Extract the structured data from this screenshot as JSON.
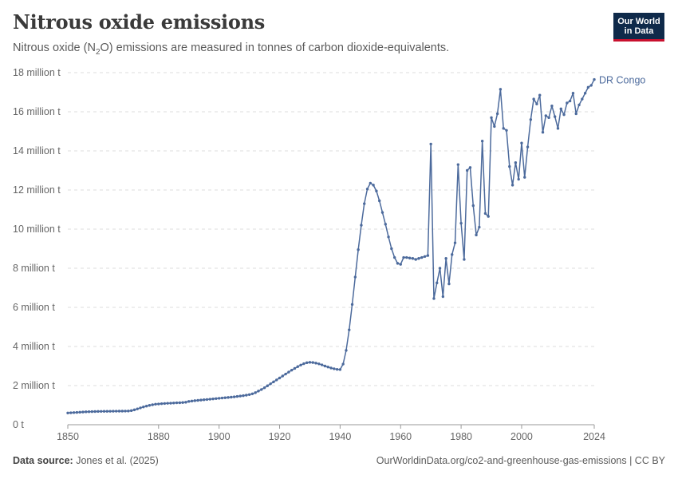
{
  "header": {
    "title": "Nitrous oxide emissions",
    "subtitle_before": "Nitrous oxide (N",
    "subtitle_sub": "2",
    "subtitle_after": "O) emissions are measured in tonnes of carbon dioxide-equivalents."
  },
  "logo": {
    "line1": "Our World",
    "line2": "in Data",
    "bg_color": "#0f2a4a",
    "accent_color": "#c8102e"
  },
  "footer": {
    "source_label": "Data source:",
    "source_text": "Jones et al. (2025)",
    "url_text": "OurWorldinData.org/co2-and-greenhouse-gas-emissions | CC BY"
  },
  "chart_data": {
    "type": "line",
    "title": "Nitrous oxide emissions",
    "xlabel": "",
    "ylabel": "",
    "xlim": [
      1850,
      2024
    ],
    "ylim": [
      0,
      18000000
    ],
    "x_ticks": [
      1850,
      1880,
      1900,
      1920,
      1940,
      1960,
      1980,
      2000,
      2024
    ],
    "y_ticks": [
      {
        "value": 0,
        "label": "0 t"
      },
      {
        "value": 2000000,
        "label": "2 million t"
      },
      {
        "value": 4000000,
        "label": "4 million t"
      },
      {
        "value": 6000000,
        "label": "6 million t"
      },
      {
        "value": 8000000,
        "label": "8 million t"
      },
      {
        "value": 10000000,
        "label": "10 million t"
      },
      {
        "value": 12000000,
        "label": "12 million t"
      },
      {
        "value": 14000000,
        "label": "14 million t"
      },
      {
        "value": 16000000,
        "label": "16 million t"
      },
      {
        "value": 18000000,
        "label": "18 million t"
      }
    ],
    "grid": "horizontal dashed",
    "series": [
      {
        "name": "DR Congo",
        "color": "#4c6a9c",
        "points": [
          [
            1850,
            600000
          ],
          [
            1851,
            610000
          ],
          [
            1852,
            620000
          ],
          [
            1853,
            630000
          ],
          [
            1854,
            640000
          ],
          [
            1855,
            650000
          ],
          [
            1856,
            660000
          ],
          [
            1857,
            665000
          ],
          [
            1858,
            670000
          ],
          [
            1859,
            675000
          ],
          [
            1860,
            680000
          ],
          [
            1861,
            682000
          ],
          [
            1862,
            684000
          ],
          [
            1863,
            686000
          ],
          [
            1864,
            688000
          ],
          [
            1865,
            690000
          ],
          [
            1866,
            692000
          ],
          [
            1867,
            694000
          ],
          [
            1868,
            696000
          ],
          [
            1869,
            698000
          ],
          [
            1870,
            700000
          ],
          [
            1871,
            720000
          ],
          [
            1872,
            760000
          ],
          [
            1873,
            810000
          ],
          [
            1874,
            860000
          ],
          [
            1875,
            910000
          ],
          [
            1876,
            950000
          ],
          [
            1877,
            990000
          ],
          [
            1878,
            1020000
          ],
          [
            1879,
            1050000
          ],
          [
            1880,
            1060000
          ],
          [
            1881,
            1075000
          ],
          [
            1882,
            1085000
          ],
          [
            1883,
            1095000
          ],
          [
            1884,
            1100000
          ],
          [
            1885,
            1110000
          ],
          [
            1886,
            1120000
          ],
          [
            1887,
            1125000
          ],
          [
            1888,
            1135000
          ],
          [
            1889,
            1150000
          ],
          [
            1890,
            1190000
          ],
          [
            1891,
            1210000
          ],
          [
            1892,
            1230000
          ],
          [
            1893,
            1245000
          ],
          [
            1894,
            1260000
          ],
          [
            1895,
            1275000
          ],
          [
            1896,
            1290000
          ],
          [
            1897,
            1305000
          ],
          [
            1898,
            1320000
          ],
          [
            1899,
            1335000
          ],
          [
            1900,
            1350000
          ],
          [
            1901,
            1365000
          ],
          [
            1902,
            1380000
          ],
          [
            1903,
            1395000
          ],
          [
            1904,
            1410000
          ],
          [
            1905,
            1425000
          ],
          [
            1906,
            1445000
          ],
          [
            1907,
            1465000
          ],
          [
            1908,
            1485000
          ],
          [
            1909,
            1510000
          ],
          [
            1910,
            1540000
          ],
          [
            1911,
            1580000
          ],
          [
            1912,
            1640000
          ],
          [
            1913,
            1720000
          ],
          [
            1914,
            1800000
          ],
          [
            1915,
            1890000
          ],
          [
            1916,
            1990000
          ],
          [
            1917,
            2090000
          ],
          [
            1918,
            2190000
          ],
          [
            1919,
            2290000
          ],
          [
            1920,
            2390000
          ],
          [
            1921,
            2490000
          ],
          [
            1922,
            2590000
          ],
          [
            1923,
            2690000
          ],
          [
            1924,
            2790000
          ],
          [
            1925,
            2880000
          ],
          [
            1926,
            2970000
          ],
          [
            1927,
            3050000
          ],
          [
            1928,
            3120000
          ],
          [
            1929,
            3170000
          ],
          [
            1930,
            3190000
          ],
          [
            1931,
            3180000
          ],
          [
            1932,
            3150000
          ],
          [
            1933,
            3110000
          ],
          [
            1934,
            3060000
          ],
          [
            1935,
            3000000
          ],
          [
            1936,
            2950000
          ],
          [
            1937,
            2900000
          ],
          [
            1938,
            2860000
          ],
          [
            1939,
            2830000
          ],
          [
            1940,
            2820000
          ],
          [
            1941,
            3100000
          ],
          [
            1942,
            3800000
          ],
          [
            1943,
            4850000
          ],
          [
            1944,
            6150000
          ],
          [
            1945,
            7550000
          ],
          [
            1946,
            8950000
          ],
          [
            1947,
            10200000
          ],
          [
            1948,
            11300000
          ],
          [
            1949,
            12050000
          ],
          [
            1950,
            12350000
          ],
          [
            1951,
            12250000
          ],
          [
            1952,
            11950000
          ],
          [
            1953,
            11450000
          ],
          [
            1954,
            10850000
          ],
          [
            1955,
            10250000
          ],
          [
            1956,
            9600000
          ],
          [
            1957,
            9000000
          ],
          [
            1958,
            8550000
          ],
          [
            1959,
            8250000
          ],
          [
            1960,
            8200000
          ],
          [
            1961,
            8550000
          ],
          [
            1962,
            8550000
          ],
          [
            1963,
            8520000
          ],
          [
            1964,
            8500000
          ],
          [
            1965,
            8450000
          ],
          [
            1966,
            8500000
          ],
          [
            1967,
            8550000
          ],
          [
            1968,
            8600000
          ],
          [
            1969,
            8650000
          ],
          [
            1970,
            14350000
          ],
          [
            1971,
            6450000
          ],
          [
            1972,
            7250000
          ],
          [
            1973,
            8000000
          ],
          [
            1974,
            6550000
          ],
          [
            1975,
            8500000
          ],
          [
            1976,
            7200000
          ],
          [
            1977,
            8700000
          ],
          [
            1978,
            9300000
          ],
          [
            1979,
            13300000
          ],
          [
            1980,
            10300000
          ],
          [
            1981,
            8450000
          ],
          [
            1982,
            13000000
          ],
          [
            1983,
            13150000
          ],
          [
            1984,
            11200000
          ],
          [
            1985,
            9700000
          ],
          [
            1986,
            10100000
          ],
          [
            1987,
            14500000
          ],
          [
            1988,
            10800000
          ],
          [
            1989,
            10650000
          ],
          [
            1990,
            15700000
          ],
          [
            1991,
            15250000
          ],
          [
            1992,
            15900000
          ],
          [
            1993,
            17150000
          ],
          [
            1994,
            15150000
          ],
          [
            1995,
            15050000
          ],
          [
            1996,
            13200000
          ],
          [
            1997,
            12250000
          ],
          [
            1998,
            13400000
          ],
          [
            1999,
            12550000
          ],
          [
            2000,
            14400000
          ],
          [
            2001,
            12650000
          ],
          [
            2002,
            14200000
          ],
          [
            2003,
            15600000
          ],
          [
            2004,
            16650000
          ],
          [
            2005,
            16400000
          ],
          [
            2006,
            16850000
          ],
          [
            2007,
            14950000
          ],
          [
            2008,
            15800000
          ],
          [
            2009,
            15700000
          ],
          [
            2010,
            16300000
          ],
          [
            2011,
            15750000
          ],
          [
            2012,
            15150000
          ],
          [
            2013,
            16150000
          ],
          [
            2014,
            15850000
          ],
          [
            2015,
            16450000
          ],
          [
            2016,
            16550000
          ],
          [
            2017,
            16950000
          ],
          [
            2018,
            15900000
          ],
          [
            2019,
            16350000
          ],
          [
            2020,
            16650000
          ],
          [
            2021,
            16950000
          ],
          [
            2022,
            17250000
          ],
          [
            2023,
            17350000
          ],
          [
            2024,
            17650000
          ]
        ]
      }
    ]
  }
}
